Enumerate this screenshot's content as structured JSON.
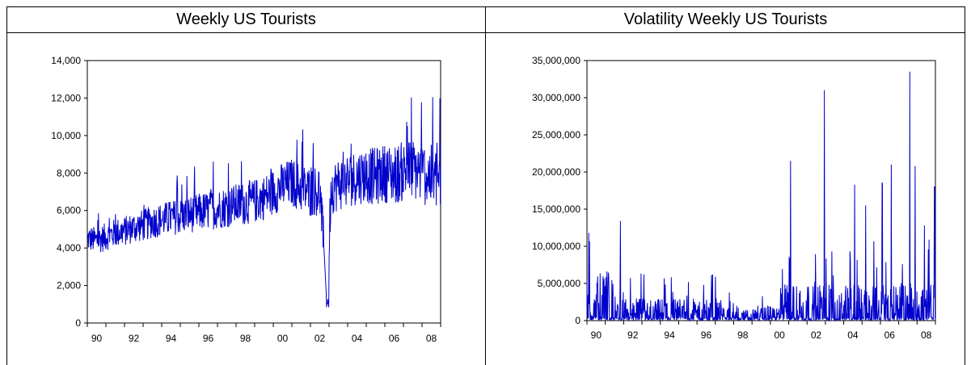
{
  "panels": {
    "left_title": "Weekly US Tourists",
    "right_title": "Volatility Weekly US Tourists"
  },
  "colors": {
    "series": "#0000cc",
    "axis": "#000000"
  },
  "chart_data": [
    {
      "type": "line",
      "title": "Weekly US Tourists",
      "xlabel": "",
      "ylabel": "",
      "x_tick_labels": [
        "90",
        "92",
        "94",
        "96",
        "98",
        "00",
        "02",
        "04",
        "06",
        "08"
      ],
      "y_tick_labels": [
        "0",
        "2,000",
        "4,000",
        "6,000",
        "8,000",
        "10,000",
        "12,000",
        "14,000"
      ],
      "ylim": [
        0,
        14000
      ],
      "xlim": [
        1990.0,
        2009.0
      ],
      "grid": false,
      "series": [
        {
          "values_year": [
            1990.0,
            1990.5,
            1991.0,
            1991.5,
            1992.0,
            1992.5,
            1993.0,
            1993.5,
            1994.0,
            1994.5,
            1995.0,
            1995.5,
            1996.0,
            1996.5,
            1997.0,
            1997.5,
            1998.0,
            1998.5,
            1999.0,
            1999.5,
            2000.0,
            2000.5,
            2001.0,
            2001.5,
            2002.0,
            2002.5,
            2002.9,
            2003.1,
            2003.5,
            2004.0,
            2004.5,
            2005.0,
            2005.5,
            2006.0,
            2006.5,
            2007.0,
            2007.5,
            2008.0,
            2008.5,
            2008.95
          ],
          "values": [
            4500,
            4400,
            4600,
            4800,
            4900,
            5100,
            5200,
            5400,
            5500,
            5600,
            5700,
            5800,
            5900,
            6000,
            6100,
            6200,
            6300,
            6400,
            6500,
            6700,
            7000,
            7300,
            7500,
            7200,
            7000,
            7100,
            1500,
            7200,
            7400,
            7600,
            7800,
            7900,
            7800,
            8000,
            7900,
            8100,
            8200,
            8000,
            7800,
            7600
          ]
        }
      ]
    },
    {
      "type": "line",
      "title": "Volatility Weekly US Tourists",
      "xlabel": "",
      "ylabel": "",
      "x_tick_labels": [
        "90",
        "92",
        "94",
        "96",
        "98",
        "00",
        "02",
        "04",
        "06",
        "08"
      ],
      "y_tick_labels": [
        "0",
        "5,000,000",
        "10,000,000",
        "15,000,000",
        "20,000,000",
        "25,000,000",
        "30,000,000",
        "35,000,000"
      ],
      "ylim": [
        0,
        35000000
      ],
      "xlim": [
        1990.0,
        2009.0
      ],
      "grid": false,
      "spikes": [
        {
          "year": 1990.1,
          "value": 11800000
        },
        {
          "year": 2001.1,
          "value": 21500000
        },
        {
          "year": 2002.95,
          "value": 31000000
        },
        {
          "year": 2004.6,
          "value": 18300000
        },
        {
          "year": 2005.2,
          "value": 15500000
        },
        {
          "year": 2006.1,
          "value": 18500000
        },
        {
          "year": 2006.6,
          "value": 21000000
        },
        {
          "year": 2007.6,
          "value": 33500000
        },
        {
          "year": 2007.9,
          "value": 20800000
        },
        {
          "year": 2008.4,
          "value": 12800000
        },
        {
          "year": 2008.95,
          "value": 18000000
        }
      ]
    }
  ]
}
